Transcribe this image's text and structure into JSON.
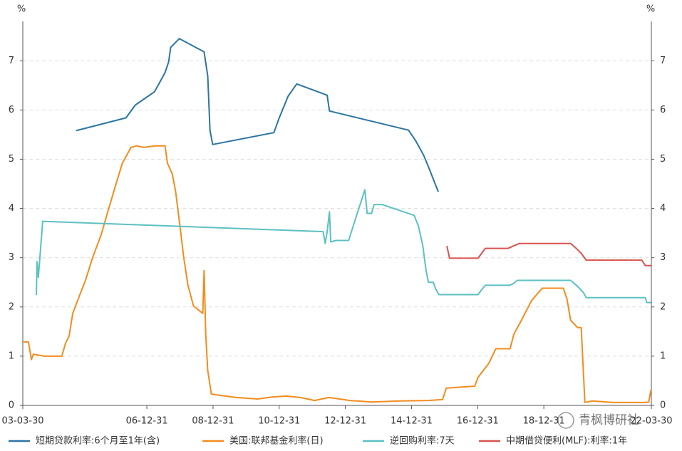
{
  "chart_data": {
    "type": "line",
    "y_unit": "%",
    "y2_unit": "%",
    "xlim": [
      2003.25,
      2022.25
    ],
    "xticks": [
      {
        "value": 2003.25,
        "label": "03-03-30"
      },
      {
        "value": 2007.0,
        "label": "06-12-31"
      },
      {
        "value": 2009.0,
        "label": "08-12-31"
      },
      {
        "value": 2011.0,
        "label": "10-12-31"
      },
      {
        "value": 2013.0,
        "label": "12-12-31"
      },
      {
        "value": 2015.0,
        "label": "14-12-31"
      },
      {
        "value": 2017.0,
        "label": "16-12-31"
      },
      {
        "value": 2019.0,
        "label": "18-12-31"
      },
      {
        "value": 2022.25,
        "label": "22-03-30"
      }
    ],
    "ylim": [
      0,
      7.8
    ],
    "yticks": [
      0,
      1,
      2,
      3,
      4,
      5,
      6,
      7
    ],
    "y2lim": [
      0,
      7.8
    ],
    "y2ticks": [
      0,
      1,
      2,
      3,
      4,
      5,
      6,
      7
    ],
    "grid": true,
    "legend": "bottom",
    "watermark": "青枫博研社",
    "series": [
      {
        "name": "短期贷款利率:6个月至1年(含)",
        "color": "#2a75a4",
        "x": [
          2004.86,
          2006.37,
          2006.65,
          2007.23,
          2007.38,
          2007.55,
          2007.66,
          2007.72,
          2007.98,
          2008.73,
          2008.84,
          2008.91,
          2008.99,
          2010.84,
          2010.99,
          2011.27,
          2011.53,
          2012.45,
          2012.52,
          2014.91,
          2015.14,
          2015.36,
          2015.51,
          2015.81
        ],
        "values": [
          5.58,
          5.84,
          6.1,
          6.37,
          6.55,
          6.76,
          6.98,
          7.27,
          7.45,
          7.18,
          6.69,
          5.58,
          5.3,
          5.54,
          5.82,
          6.28,
          6.53,
          6.3,
          5.98,
          5.59,
          5.36,
          5.09,
          4.85,
          4.34
        ]
      },
      {
        "name": "美国:联邦基金利率(日)",
        "color": "#f28c1e",
        "x": [
          2003.25,
          2003.42,
          2003.51,
          2003.57,
          2003.9,
          2004.43,
          2004.54,
          2004.65,
          2004.76,
          2004.97,
          2005.14,
          2005.36,
          2005.62,
          2005.83,
          2006.05,
          2006.26,
          2006.52,
          2006.69,
          2006.91,
          2007.23,
          2007.55,
          2007.62,
          2007.77,
          2007.87,
          2008.02,
          2008.11,
          2008.24,
          2008.41,
          2008.69,
          2008.73,
          2008.78,
          2008.84,
          2008.95,
          2009.27,
          2009.7,
          2010.35,
          2010.78,
          2011.21,
          2011.64,
          2012.07,
          2012.5,
          2013.14,
          2013.79,
          2014.65,
          2015.51,
          2015.94,
          2016.05,
          2016.91,
          2017.01,
          2017.34,
          2017.55,
          2017.98,
          2018.09,
          2018.3,
          2018.63,
          2018.95,
          2019.27,
          2019.59,
          2019.7,
          2019.81,
          2020.02,
          2020.13,
          2020.24,
          2020.45,
          2021.1,
          2022.07,
          2022.17,
          2022.24
        ],
        "values": [
          1.29,
          1.29,
          0.93,
          1.04,
          1.0,
          1.0,
          1.26,
          1.41,
          1.87,
          2.24,
          2.53,
          3.0,
          3.47,
          3.96,
          4.46,
          4.92,
          5.24,
          5.27,
          5.24,
          5.27,
          5.27,
          4.92,
          4.7,
          4.34,
          3.54,
          3.03,
          2.45,
          2.02,
          1.87,
          2.74,
          1.44,
          0.71,
          0.23,
          0.2,
          0.16,
          0.13,
          0.17,
          0.19,
          0.16,
          0.1,
          0.16,
          0.1,
          0.07,
          0.09,
          0.1,
          0.12,
          0.35,
          0.39,
          0.57,
          0.86,
          1.15,
          1.15,
          1.44,
          1.7,
          2.13,
          2.38,
          2.38,
          2.38,
          2.16,
          1.73,
          1.58,
          1.58,
          0.06,
          0.09,
          0.06,
          0.06,
          0.07,
          0.32
        ]
      },
      {
        "name": "逆回购利率:7天",
        "color": "#5cc0c2",
        "x": [
          2003.66,
          2003.68,
          2003.72,
          2003.85,
          2012.33,
          2012.39,
          2012.45,
          2012.52,
          2012.56,
          2012.71,
          2013.1,
          2013.36,
          2013.59,
          2013.66,
          2013.79,
          2013.87,
          2014.11,
          2015.08,
          2015.21,
          2015.34,
          2015.44,
          2015.51,
          2015.66,
          2015.72,
          2015.83,
          2017.01,
          2017.12,
          2017.23,
          2017.98,
          2018.09,
          2018.2,
          2019.81,
          2020.02,
          2020.2,
          2020.28,
          2022.07,
          2022.11,
          2022.24
        ],
        "values": [
          2.24,
          2.92,
          2.6,
          3.74,
          3.53,
          3.29,
          3.53,
          3.93,
          3.32,
          3.35,
          3.35,
          3.9,
          4.38,
          3.9,
          3.9,
          4.08,
          4.08,
          3.86,
          3.64,
          3.25,
          2.74,
          2.5,
          2.5,
          2.38,
          2.25,
          2.25,
          2.35,
          2.44,
          2.44,
          2.48,
          2.54,
          2.54,
          2.42,
          2.29,
          2.19,
          2.19,
          2.09,
          2.09
        ]
      },
      {
        "name": "中期借贷便利(MLF):利率:1年",
        "color": "#d9534f",
        "x": [
          2016.07,
          2016.15,
          2017.01,
          2017.12,
          2017.23,
          2017.92,
          2018.09,
          2018.26,
          2019.81,
          2019.98,
          2020.13,
          2020.28,
          2021.96,
          2022.07,
          2022.24
        ],
        "values": [
          3.24,
          2.99,
          2.99,
          3.09,
          3.19,
          3.19,
          3.24,
          3.29,
          3.29,
          3.19,
          3.09,
          2.95,
          2.95,
          2.84,
          2.84
        ]
      }
    ]
  }
}
